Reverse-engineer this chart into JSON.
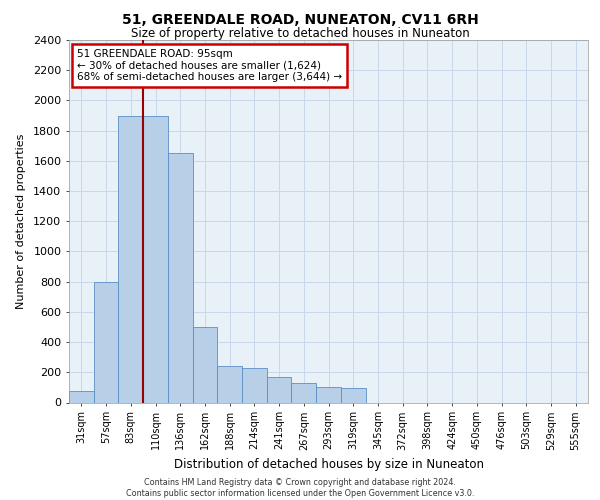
{
  "title": "51, GREENDALE ROAD, NUNEATON, CV11 6RH",
  "subtitle": "Size of property relative to detached houses in Nuneaton",
  "xlabel": "Distribution of detached houses by size in Nuneaton",
  "ylabel": "Number of detached properties",
  "categories": [
    "31sqm",
    "57sqm",
    "83sqm",
    "110sqm",
    "136sqm",
    "162sqm",
    "188sqm",
    "214sqm",
    "241sqm",
    "267sqm",
    "293sqm",
    "319sqm",
    "345sqm",
    "372sqm",
    "398sqm",
    "424sqm",
    "450sqm",
    "476sqm",
    "503sqm",
    "529sqm",
    "555sqm"
  ],
  "values": [
    75,
    800,
    1900,
    1900,
    1650,
    500,
    240,
    230,
    170,
    130,
    100,
    95,
    0,
    0,
    0,
    0,
    0,
    0,
    0,
    0,
    0
  ],
  "bar_color": "#b8cfe8",
  "bar_edge_color": "#5b8ec4",
  "annotation_text": "51 GREENDALE ROAD: 95sqm\n← 30% of detached houses are smaller (1,624)\n68% of semi-detached houses are larger (3,644) →",
  "annotation_box_color": "#ffffff",
  "annotation_box_edge": "#cc0000",
  "vline_color": "#990000",
  "vline_x": 2.5,
  "ylim": [
    0,
    2400
  ],
  "yticks": [
    0,
    200,
    400,
    600,
    800,
    1000,
    1200,
    1400,
    1600,
    1800,
    2000,
    2200,
    2400
  ],
  "grid_color": "#c8d8ea",
  "footer_line1": "Contains HM Land Registry data © Crown copyright and database right 2024.",
  "footer_line2": "Contains public sector information licensed under the Open Government Licence v3.0.",
  "background_color": "#e8f0f8",
  "title_fontsize": 10,
  "subtitle_fontsize": 8.5
}
